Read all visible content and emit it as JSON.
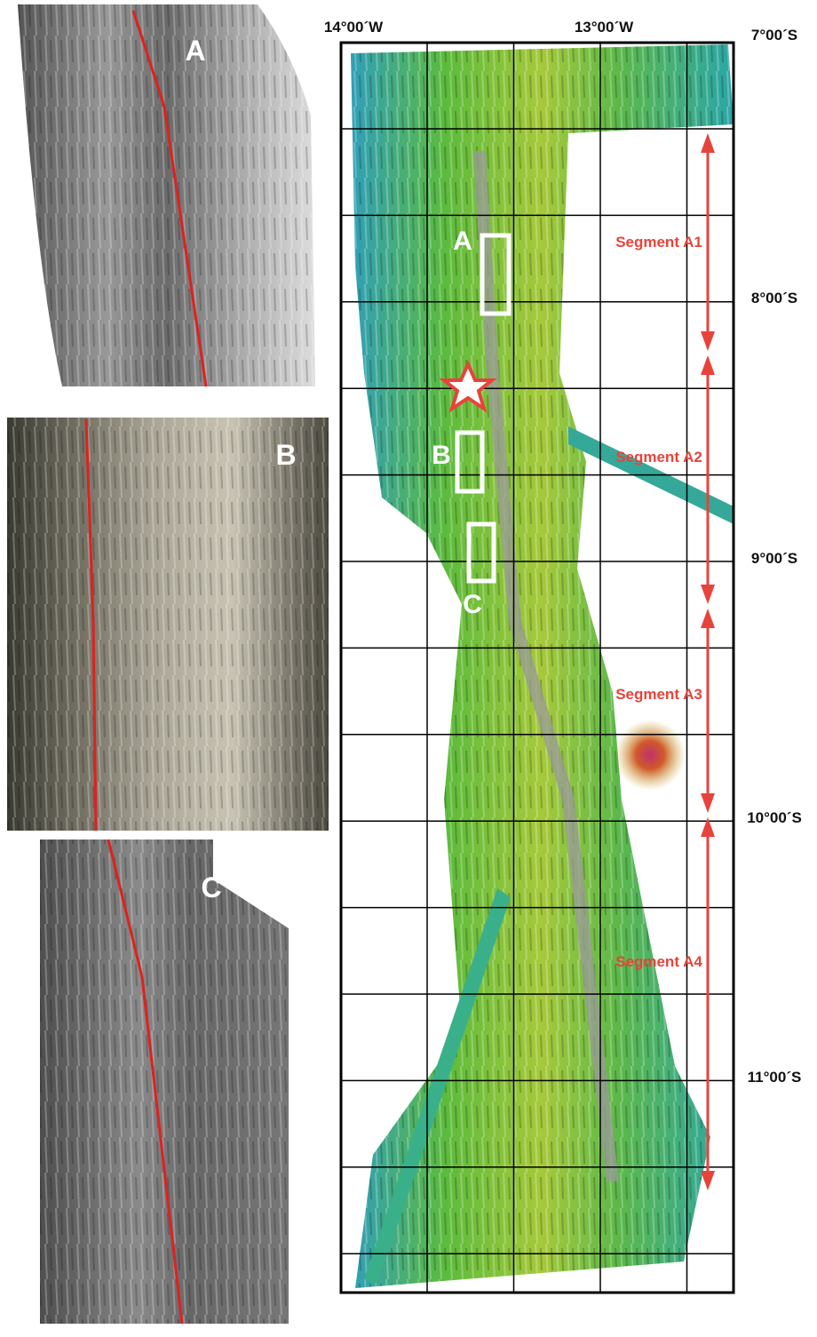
{
  "panels": [
    {
      "label": "A"
    },
    {
      "label": "B"
    },
    {
      "label": "C"
    }
  ],
  "map": {
    "longitude_labels": [
      "14°00´W",
      "13°00´W"
    ],
    "latitude_labels": [
      "7°00´S",
      "8°00´S",
      "9°00´S",
      "10°00´S",
      "11°00´S"
    ],
    "box_labels": [
      "A",
      "B",
      "C"
    ],
    "segments": [
      "Segment A1",
      "Segment A2",
      "Segment A3",
      "Segment A4"
    ]
  }
}
